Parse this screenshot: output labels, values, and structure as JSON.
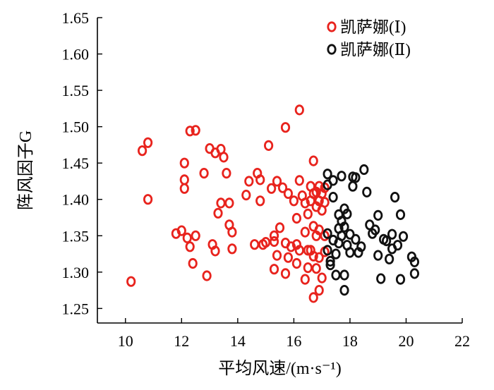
{
  "chart_data": {
    "type": "scatter",
    "title": "",
    "xlabel": "平均风速/(m·s⁻¹)",
    "ylabel": "阵风因子G",
    "xlim": [
      9,
      22
    ],
    "ylim": [
      1.23,
      1.65
    ],
    "xticks": [
      "10",
      "12",
      "14",
      "16",
      "18",
      "20",
      "22"
    ],
    "yticks": [
      "1.25",
      "1.30",
      "1.35",
      "1.40",
      "1.45",
      "1.50",
      "1.55",
      "1.60",
      "1.65"
    ],
    "legend_position": "top-right",
    "series": [
      {
        "name": "凯萨娜(Ⅰ)",
        "color": "#e8231d",
        "points": [
          [
            10.2,
            1.287
          ],
          [
            10.6,
            1.467
          ],
          [
            10.8,
            1.478
          ],
          [
            10.8,
            1.4
          ],
          [
            11.8,
            1.353
          ],
          [
            12.0,
            1.357
          ],
          [
            12.1,
            1.427
          ],
          [
            12.1,
            1.45
          ],
          [
            12.1,
            1.415
          ],
          [
            12.2,
            1.347
          ],
          [
            12.3,
            1.335
          ],
          [
            12.3,
            1.494
          ],
          [
            12.4,
            1.312
          ],
          [
            12.5,
            1.35
          ],
          [
            12.5,
            1.495
          ],
          [
            12.8,
            1.436
          ],
          [
            12.9,
            1.295
          ],
          [
            13.0,
            1.47
          ],
          [
            13.1,
            1.338
          ],
          [
            13.2,
            1.464
          ],
          [
            13.2,
            1.329
          ],
          [
            13.3,
            1.381
          ],
          [
            13.4,
            1.469
          ],
          [
            13.4,
            1.395
          ],
          [
            13.5,
            1.458
          ],
          [
            13.6,
            1.436
          ],
          [
            13.7,
            1.395
          ],
          [
            13.7,
            1.365
          ],
          [
            13.8,
            1.355
          ],
          [
            13.8,
            1.332
          ],
          [
            14.3,
            1.406
          ],
          [
            14.4,
            1.425
          ],
          [
            14.6,
            1.338
          ],
          [
            14.7,
            1.436
          ],
          [
            14.8,
            1.398
          ],
          [
            14.8,
            1.427
          ],
          [
            14.9,
            1.338
          ],
          [
            15.0,
            1.341
          ],
          [
            15.1,
            1.474
          ],
          [
            15.2,
            1.415
          ],
          [
            15.3,
            1.304
          ],
          [
            15.3,
            1.342
          ],
          [
            15.3,
            1.35
          ],
          [
            15.4,
            1.425
          ],
          [
            15.4,
            1.323
          ],
          [
            15.5,
            1.361
          ],
          [
            15.6,
            1.416
          ],
          [
            15.7,
            1.499
          ],
          [
            15.7,
            1.298
          ],
          [
            15.7,
            1.34
          ],
          [
            15.8,
            1.408
          ],
          [
            15.8,
            1.32
          ],
          [
            15.9,
            1.335
          ],
          [
            16.0,
            1.398
          ],
          [
            16.1,
            1.374
          ],
          [
            16.1,
            1.338
          ],
          [
            16.1,
            1.312
          ],
          [
            16.2,
            1.426
          ],
          [
            16.2,
            1.523
          ],
          [
            16.2,
            1.33
          ],
          [
            16.3,
            1.405
          ],
          [
            16.4,
            1.395
          ],
          [
            16.4,
            1.355
          ],
          [
            16.4,
            1.29
          ],
          [
            16.5,
            1.38
          ],
          [
            16.5,
            1.33
          ],
          [
            16.5,
            1.306
          ],
          [
            16.6,
            1.418
          ],
          [
            16.6,
            1.398
          ],
          [
            16.6,
            1.33
          ],
          [
            16.7,
            1.453
          ],
          [
            16.7,
            1.408
          ],
          [
            16.7,
            1.363
          ],
          [
            16.7,
            1.322
          ],
          [
            16.7,
            1.265
          ],
          [
            16.8,
            1.41
          ],
          [
            16.8,
            1.39
          ],
          [
            16.8,
            1.35
          ],
          [
            16.8,
            1.305
          ],
          [
            16.9,
            1.418
          ],
          [
            16.9,
            1.398
          ],
          [
            16.9,
            1.358
          ],
          [
            16.9,
            1.32
          ],
          [
            16.9,
            1.275
          ],
          [
            17.0,
            1.408
          ],
          [
            17.0,
            1.385
          ],
          [
            17.0,
            1.292
          ],
          [
            17.1,
            1.416
          ],
          [
            17.1,
            1.396
          ],
          [
            17.1,
            1.35
          ],
          [
            17.1,
            1.328
          ]
        ]
      },
      {
        "name": "凯萨娜(Ⅱ)",
        "color": "#111111",
        "points": [
          [
            17.2,
            1.435
          ],
          [
            17.2,
            1.42
          ],
          [
            17.2,
            1.353
          ],
          [
            17.2,
            1.33
          ],
          [
            17.3,
            1.315
          ],
          [
            17.3,
            1.31
          ],
          [
            17.4,
            1.426
          ],
          [
            17.4,
            1.403
          ],
          [
            17.4,
            1.344
          ],
          [
            17.5,
            1.325
          ],
          [
            17.5,
            1.296
          ],
          [
            17.6,
            1.379
          ],
          [
            17.6,
            1.36
          ],
          [
            17.6,
            1.34
          ],
          [
            17.7,
            1.432
          ],
          [
            17.7,
            1.37
          ],
          [
            17.7,
            1.35
          ],
          [
            17.8,
            1.296
          ],
          [
            17.8,
            1.387
          ],
          [
            17.8,
            1.362
          ],
          [
            17.8,
            1.275
          ],
          [
            17.9,
            1.38
          ],
          [
            17.9,
            1.337
          ],
          [
            18.0,
            1.352
          ],
          [
            18.0,
            1.327
          ],
          [
            18.1,
            1.431
          ],
          [
            18.1,
            1.418
          ],
          [
            18.2,
            1.345
          ],
          [
            18.2,
            1.43
          ],
          [
            18.3,
            1.327
          ],
          [
            18.4,
            1.335
          ],
          [
            18.5,
            1.441
          ],
          [
            18.6,
            1.41
          ],
          [
            18.7,
            1.365
          ],
          [
            18.8,
            1.353
          ],
          [
            18.9,
            1.358
          ],
          [
            19.0,
            1.323
          ],
          [
            19.0,
            1.378
          ],
          [
            19.1,
            1.291
          ],
          [
            19.2,
            1.345
          ],
          [
            19.3,
            1.343
          ],
          [
            19.4,
            1.318
          ],
          [
            19.5,
            1.332
          ],
          [
            19.5,
            1.352
          ],
          [
            19.6,
            1.403
          ],
          [
            19.7,
            1.337
          ],
          [
            19.8,
            1.29
          ],
          [
            19.8,
            1.379
          ],
          [
            19.9,
            1.349
          ],
          [
            20.2,
            1.321
          ],
          [
            20.3,
            1.314
          ],
          [
            20.3,
            1.298
          ]
        ]
      }
    ]
  }
}
